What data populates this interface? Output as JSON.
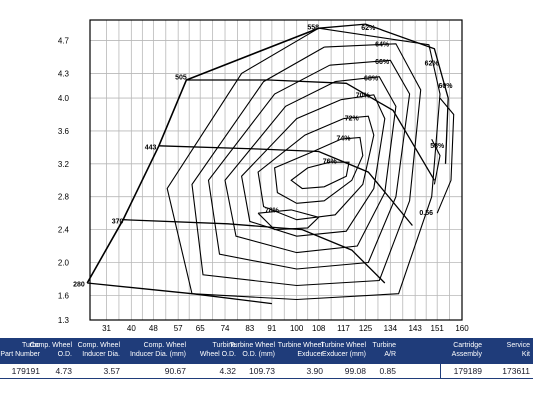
{
  "chart_data": {
    "type": "line",
    "x_ticks": [
      "31",
      "40",
      "48",
      "57",
      "65",
      "74",
      "83",
      "91",
      "100",
      "108",
      "117",
      "125",
      "134",
      "143",
      "151",
      "160"
    ],
    "y_ticks": [
      "1.3",
      "1.6",
      "2.0",
      "2.4",
      "2.8",
      "3.2",
      "3.6",
      "4.0",
      "4.3",
      "4.7"
    ],
    "xlim": [
      25,
      160
    ],
    "ylim": [
      1.3,
      4.95
    ],
    "grid": true,
    "speed_lines": [
      {
        "label": "280",
        "points": [
          [
            24,
            1.75
          ],
          [
            62,
            1.62
          ],
          [
            91,
            1.5
          ]
        ]
      },
      {
        "label": "370",
        "points": [
          [
            37,
            2.52
          ],
          [
            75,
            2.47
          ],
          [
            102,
            2.4
          ],
          [
            120,
            2.15
          ],
          [
            132,
            1.75
          ]
        ]
      },
      {
        "label": "443",
        "points": [
          [
            50,
            3.42
          ],
          [
            86,
            3.38
          ],
          [
            108,
            3.35
          ],
          [
            126,
            3.1
          ],
          [
            142,
            2.45
          ]
        ]
      },
      {
        "label": "505",
        "points": [
          [
            60,
            4.22
          ],
          [
            90,
            4.22
          ],
          [
            118,
            4.18
          ],
          [
            135,
            3.85
          ],
          [
            150,
            3.0
          ]
        ]
      },
      {
        "label": "558",
        "points": [
          [
            108,
            4.85
          ],
          [
            125,
            4.9
          ],
          [
            150,
            4.6
          ],
          [
            155,
            4.0
          ],
          [
            154,
            3.2
          ]
        ]
      }
    ],
    "surge_line": [
      [
        24,
        1.75
      ],
      [
        37,
        2.52
      ],
      [
        50,
        3.42
      ],
      [
        60,
        4.22
      ],
      [
        108,
        4.85
      ]
    ],
    "efficiency_islands": [
      {
        "label": "62%",
        "points": [
          [
            108,
            4.85
          ],
          [
            148,
            4.65
          ],
          [
            152,
            4.05
          ],
          [
            149,
            2.8
          ],
          [
            137,
            1.62
          ],
          [
            100,
            1.55
          ],
          [
            62,
            1.62
          ],
          [
            53,
            2.9
          ],
          [
            80,
            4.3
          ],
          [
            108,
            4.85
          ]
        ]
      },
      {
        "label": "64%",
        "points": [
          [
            110,
            4.62
          ],
          [
            136,
            4.66
          ],
          [
            145,
            4.1
          ],
          [
            141,
            2.75
          ],
          [
            130,
            1.78
          ],
          [
            100,
            1.72
          ],
          [
            66,
            1.85
          ],
          [
            62,
            2.95
          ],
          [
            88,
            4.2
          ],
          [
            110,
            4.62
          ]
        ]
      },
      {
        "label": "66%",
        "points": [
          [
            112,
            4.4
          ],
          [
            134,
            4.46
          ],
          [
            141,
            4.05
          ],
          [
            136,
            2.8
          ],
          [
            126,
            2.0
          ],
          [
            100,
            1.92
          ],
          [
            72,
            2.1
          ],
          [
            68,
            3.0
          ],
          [
            92,
            4.05
          ],
          [
            112,
            4.4
          ]
        ]
      },
      {
        "label": "68%",
        "points": [
          [
            114,
            4.2
          ],
          [
            130,
            4.26
          ],
          [
            136,
            3.9
          ],
          [
            132,
            2.85
          ],
          [
            122,
            2.2
          ],
          [
            100,
            2.12
          ],
          [
            78,
            2.32
          ],
          [
            74,
            3.0
          ],
          [
            96,
            3.9
          ],
          [
            114,
            4.2
          ]
        ]
      },
      {
        "label": "70%",
        "points": [
          [
            116,
            3.98
          ],
          [
            128,
            4.04
          ],
          [
            132,
            3.75
          ],
          [
            128,
            2.9
          ],
          [
            118,
            2.38
          ],
          [
            100,
            2.32
          ],
          [
            83,
            2.5
          ],
          [
            80,
            3.05
          ],
          [
            100,
            3.75
          ],
          [
            116,
            3.98
          ]
        ]
      },
      {
        "label": "72%",
        "points": [
          [
            117,
            3.75
          ],
          [
            126,
            3.78
          ],
          [
            128,
            3.55
          ],
          [
            124,
            2.95
          ],
          [
            114,
            2.58
          ],
          [
            100,
            2.52
          ],
          [
            88,
            2.68
          ],
          [
            86,
            3.1
          ],
          [
            103,
            3.55
          ],
          [
            117,
            3.75
          ]
        ]
      },
      {
        "label": "74%",
        "points": [
          [
            116,
            3.5
          ],
          [
            123,
            3.52
          ],
          [
            124,
            3.3
          ],
          [
            120,
            3.0
          ],
          [
            110,
            2.75
          ],
          [
            100,
            2.72
          ],
          [
            93,
            2.85
          ],
          [
            92,
            3.15
          ],
          [
            106,
            3.35
          ],
          [
            116,
            3.5
          ]
        ]
      },
      {
        "label": "76%",
        "points": [
          [
            112,
            3.22
          ],
          [
            119,
            3.22
          ],
          [
            118,
            3.05
          ],
          [
            110,
            2.92
          ],
          [
            102,
            2.9
          ],
          [
            98,
            3.0
          ],
          [
            104,
            3.15
          ],
          [
            112,
            3.22
          ]
        ]
      },
      {
        "label": "78%",
        "points": [
          [
            86,
            2.6
          ],
          [
            98,
            2.64
          ],
          [
            108,
            2.55
          ],
          [
            104,
            2.42
          ],
          [
            92,
            2.4
          ],
          [
            86,
            2.6
          ]
        ]
      },
      {
        "label": "60%",
        "points": [
          [
            152,
            4.0
          ],
          [
            157,
            3.8
          ],
          [
            156,
            3.0
          ],
          [
            151,
            2.6
          ]
        ]
      },
      {
        "label": "58%",
        "points": [
          [
            149,
            3.5
          ],
          [
            152,
            3.3
          ],
          [
            150,
            2.95
          ]
        ]
      }
    ],
    "annotations": [
      {
        "text": "558",
        "x": 106,
        "y": 4.86
      },
      {
        "text": "62%",
        "x": 126,
        "y": 4.85
      },
      {
        "text": "64%",
        "x": 131,
        "y": 4.65
      },
      {
        "text": "66%",
        "x": 131,
        "y": 4.44
      },
      {
        "text": "68%",
        "x": 127,
        "y": 4.24
      },
      {
        "text": "70%",
        "x": 124,
        "y": 4.03
      },
      {
        "text": "505",
        "x": 58,
        "y": 4.25
      },
      {
        "text": "72%",
        "x": 120,
        "y": 3.75
      },
      {
        "text": "74%",
        "x": 117,
        "y": 3.51
      },
      {
        "text": "62%",
        "x": 149,
        "y": 4.42
      },
      {
        "text": "60%",
        "x": 154,
        "y": 4.15
      },
      {
        "text": "443",
        "x": 47,
        "y": 3.4
      },
      {
        "text": "76%",
        "x": 112,
        "y": 3.23
      },
      {
        "text": "58%",
        "x": 151,
        "y": 3.42
      },
      {
        "text": "78%",
        "x": 91,
        "y": 2.63
      },
      {
        "text": "0.56",
        "x": 147,
        "y": 2.6
      },
      {
        "text": "370",
        "x": 35,
        "y": 2.5
      },
      {
        "text": "280",
        "x": 21,
        "y": 1.73
      }
    ]
  },
  "table": {
    "columns": [
      {
        "h1": "Turbo",
        "h2": "Part Number",
        "value": "179191"
      },
      {
        "h1": "Comp. Wheel",
        "h2": "O.D.",
        "value": "4.73"
      },
      {
        "h1": "Comp. Wheel",
        "h2": "Inducer Dia.",
        "value": "3.57"
      },
      {
        "h1": "Comp. Wheel",
        "h2": "Inducer Dia. (mm)",
        "value": "90.67"
      },
      {
        "h1": "Turbine",
        "h2": "Wheel O.D.",
        "value": "4.32"
      },
      {
        "h1": "Turbine Wheel",
        "h2": "O.D. (mm)",
        "value": "109.73"
      },
      {
        "h1": "Turbine Wheel",
        "h2": "Exducer",
        "value": "3.90"
      },
      {
        "h1": "Turbine Wheel",
        "h2": "Exducer (mm)",
        "value": "99.08"
      },
      {
        "h1": "Turbine",
        "h2": "A/R",
        "value": "0.85"
      },
      {
        "h1": "Cartridge",
        "h2": "Assembly",
        "value": "179189"
      },
      {
        "h1": "Service",
        "h2": "Kit",
        "value": "173611"
      }
    ]
  }
}
